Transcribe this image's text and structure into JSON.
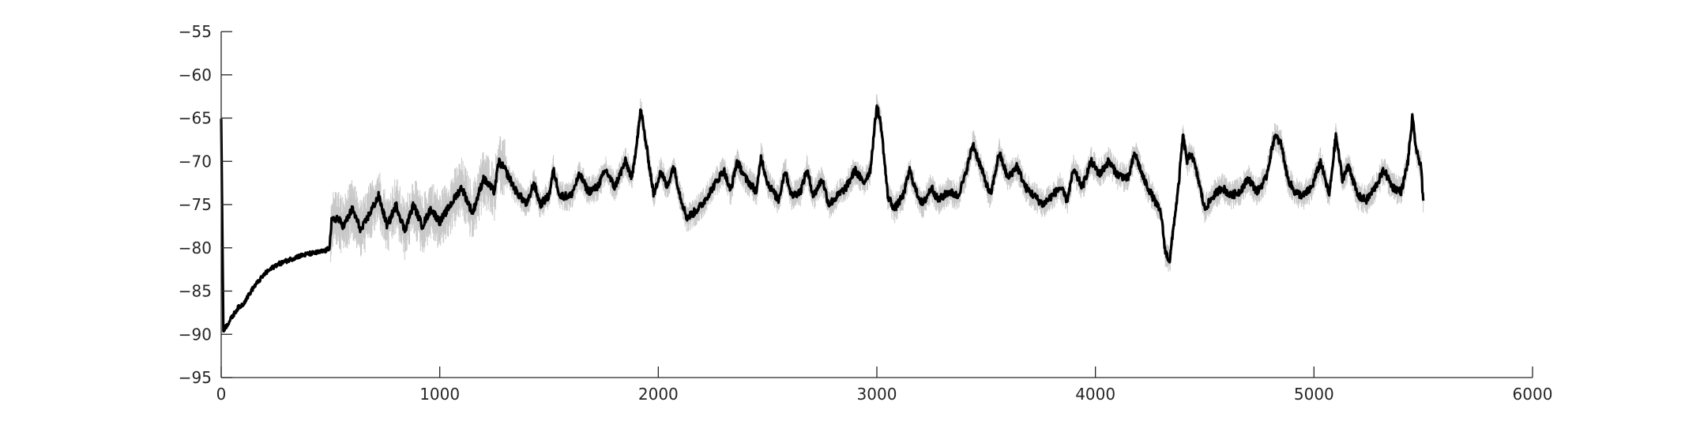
{
  "chart_data": {
    "type": "line",
    "title": "",
    "xlabel": "",
    "ylabel": "",
    "xlim": [
      0,
      6000
    ],
    "ylim": [
      -95,
      -55
    ],
    "xticks": [
      0,
      1000,
      2000,
      3000,
      4000,
      5000,
      6000
    ],
    "yticks": [
      -55,
      -60,
      -65,
      -70,
      -75,
      -80,
      -85,
      -90,
      -95
    ],
    "xtick_labels": [
      "0",
      "1000",
      "2000",
      "3000",
      "4000",
      "5000",
      "6000"
    ],
    "ytick_labels": [
      "−55",
      "−60",
      "−65",
      "−70",
      "−75",
      "−80",
      "−85",
      "−90",
      "−95"
    ],
    "grid": false,
    "legend": "none",
    "colors": {
      "mean": "#000000",
      "band": "#c8c8c8",
      "axis": "#262626"
    },
    "series": [
      {
        "role": "mean",
        "points": [
          [
            0,
            -65
          ],
          [
            10,
            -89.5
          ],
          [
            25,
            -89
          ],
          [
            50,
            -88
          ],
          [
            75,
            -87
          ],
          [
            100,
            -86.5
          ],
          [
            150,
            -84.5
          ],
          [
            200,
            -83
          ],
          [
            250,
            -82
          ],
          [
            300,
            -81.5
          ],
          [
            350,
            -81
          ],
          [
            400,
            -80.7
          ],
          [
            450,
            -80.5
          ],
          [
            480,
            -80.3
          ],
          [
            495,
            -80
          ],
          [
            505,
            -77
          ],
          [
            530,
            -76.5
          ],
          [
            560,
            -77.5
          ],
          [
            600,
            -75.5
          ],
          [
            640,
            -78
          ],
          [
            680,
            -76
          ],
          [
            720,
            -74
          ],
          [
            760,
            -77.5
          ],
          [
            800,
            -75
          ],
          [
            840,
            -78
          ],
          [
            880,
            -75
          ],
          [
            920,
            -77.5
          ],
          [
            960,
            -75.5
          ],
          [
            1000,
            -77
          ],
          [
            1050,
            -75
          ],
          [
            1100,
            -73
          ],
          [
            1150,
            -76
          ],
          [
            1200,
            -72
          ],
          [
            1250,
            -73.5
          ],
          [
            1270,
            -70
          ],
          [
            1300,
            -71
          ],
          [
            1350,
            -73.5
          ],
          [
            1400,
            -75
          ],
          [
            1430,
            -72.5
          ],
          [
            1460,
            -75
          ],
          [
            1500,
            -74
          ],
          [
            1520,
            -71
          ],
          [
            1550,
            -74
          ],
          [
            1600,
            -74
          ],
          [
            1640,
            -71.5
          ],
          [
            1680,
            -73.5
          ],
          [
            1720,
            -73
          ],
          [
            1760,
            -71
          ],
          [
            1800,
            -73
          ],
          [
            1850,
            -70
          ],
          [
            1880,
            -72
          ],
          [
            1920,
            -64
          ],
          [
            1950,
            -69
          ],
          [
            1980,
            -74
          ],
          [
            2010,
            -71
          ],
          [
            2040,
            -73
          ],
          [
            2070,
            -70.5
          ],
          [
            2100,
            -74
          ],
          [
            2130,
            -76.5
          ],
          [
            2160,
            -76
          ],
          [
            2200,
            -75
          ],
          [
            2250,
            -73
          ],
          [
            2300,
            -71
          ],
          [
            2330,
            -73.5
          ],
          [
            2360,
            -70
          ],
          [
            2400,
            -72
          ],
          [
            2450,
            -73.5
          ],
          [
            2470,
            -69.5
          ],
          [
            2500,
            -72.5
          ],
          [
            2550,
            -74.5
          ],
          [
            2580,
            -71
          ],
          [
            2610,
            -74
          ],
          [
            2650,
            -73.5
          ],
          [
            2680,
            -71
          ],
          [
            2710,
            -74
          ],
          [
            2750,
            -72
          ],
          [
            2780,
            -75
          ],
          [
            2820,
            -74
          ],
          [
            2860,
            -73
          ],
          [
            2900,
            -71
          ],
          [
            2940,
            -72.5
          ],
          [
            2970,
            -71
          ],
          [
            3000,
            -63.5
          ],
          [
            3020,
            -66
          ],
          [
            3050,
            -74
          ],
          [
            3080,
            -75.5
          ],
          [
            3120,
            -74
          ],
          [
            3150,
            -71
          ],
          [
            3180,
            -73.5
          ],
          [
            3210,
            -75
          ],
          [
            3250,
            -73
          ],
          [
            3280,
            -74.5
          ],
          [
            3330,
            -73.5
          ],
          [
            3370,
            -74
          ],
          [
            3400,
            -72
          ],
          [
            3440,
            -68
          ],
          [
            3480,
            -71
          ],
          [
            3520,
            -74
          ],
          [
            3560,
            -69
          ],
          [
            3600,
            -72
          ],
          [
            3640,
            -70.5
          ],
          [
            3680,
            -73
          ],
          [
            3720,
            -74
          ],
          [
            3760,
            -75
          ],
          [
            3800,
            -74
          ],
          [
            3840,
            -73
          ],
          [
            3870,
            -74.5
          ],
          [
            3900,
            -71
          ],
          [
            3940,
            -73
          ],
          [
            3980,
            -70
          ],
          [
            4020,
            -71.5
          ],
          [
            4060,
            -70
          ],
          [
            4100,
            -71.5
          ],
          [
            4150,
            -72
          ],
          [
            4180,
            -69
          ],
          [
            4220,
            -72
          ],
          [
            4260,
            -74
          ],
          [
            4300,
            -76
          ],
          [
            4320,
            -80.5
          ],
          [
            4340,
            -81.5
          ],
          [
            4360,
            -77
          ],
          [
            4380,
            -73
          ],
          [
            4400,
            -67
          ],
          [
            4420,
            -70
          ],
          [
            4440,
            -69
          ],
          [
            4470,
            -72
          ],
          [
            4500,
            -75.5
          ],
          [
            4540,
            -74
          ],
          [
            4580,
            -73
          ],
          [
            4620,
            -74
          ],
          [
            4660,
            -73.5
          ],
          [
            4700,
            -72
          ],
          [
            4740,
            -73.5
          ],
          [
            4780,
            -72
          ],
          [
            4820,
            -67
          ],
          [
            4850,
            -68
          ],
          [
            4880,
            -72
          ],
          [
            4910,
            -73.5
          ],
          [
            4950,
            -74
          ],
          [
            4990,
            -73
          ],
          [
            5030,
            -70
          ],
          [
            5070,
            -74
          ],
          [
            5100,
            -67
          ],
          [
            5130,
            -72
          ],
          [
            5160,
            -70.5
          ],
          [
            5200,
            -74
          ],
          [
            5240,
            -74.5
          ],
          [
            5280,
            -73
          ],
          [
            5320,
            -71
          ],
          [
            5360,
            -73
          ],
          [
            5400,
            -73.5
          ],
          [
            5430,
            -70
          ],
          [
            5450,
            -65
          ],
          [
            5470,
            -69
          ],
          [
            5490,
            -70.5
          ],
          [
            5500,
            -75
          ]
        ]
      }
    ]
  }
}
